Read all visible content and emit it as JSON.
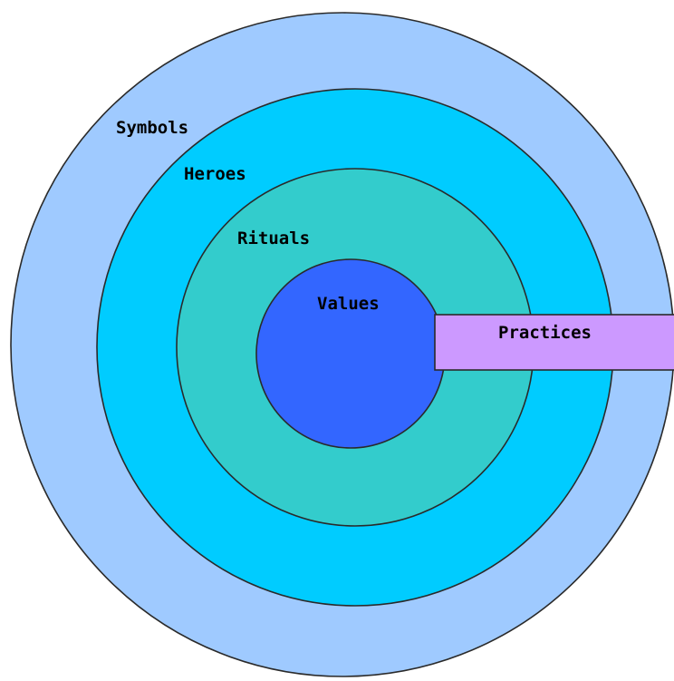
{
  "diagram": {
    "layers": [
      {
        "id": "symbols",
        "label": "Symbols",
        "color": "#9fcaff"
      },
      {
        "id": "heroes",
        "label": "Heroes",
        "color": "#00ccff"
      },
      {
        "id": "rituals",
        "label": "Rituals",
        "color": "#33cccc"
      },
      {
        "id": "values",
        "label": "Values",
        "color": "#3366ff"
      }
    ],
    "practices": {
      "label": "Practices",
      "color": "#cc99ff"
    }
  }
}
